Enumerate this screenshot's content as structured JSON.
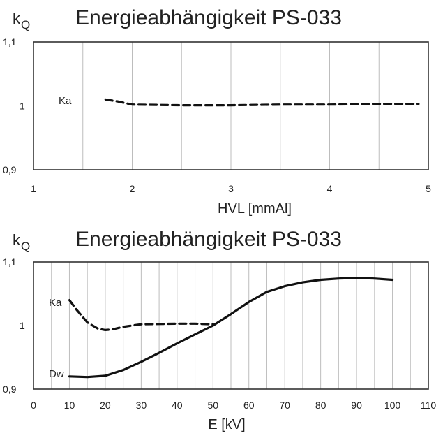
{
  "chart_data": [
    {
      "type": "line",
      "title": "Energieabhängigkeit PS-033",
      "ylabel_main": "k",
      "ylabel_sub": "Q",
      "xlabel": "HVL  [mmAl]",
      "xlim": [
        1,
        5
      ],
      "ylim": [
        0.9,
        1.1
      ],
      "x_ticks": [
        "1",
        "2",
        "3",
        "4",
        "5"
      ],
      "y_ticks": [
        "1,1",
        "1",
        "0,9"
      ],
      "grid": "vertical",
      "series": [
        {
          "name": "Ka",
          "style": "dashed",
          "x": [
            1.73,
            1.85,
            2.0,
            2.5,
            3.0,
            3.5,
            4.0,
            4.5,
            4.9
          ],
          "y": [
            1.01,
            1.007,
            1.002,
            1.001,
            1.001,
            1.002,
            1.002,
            1.003,
            1.003
          ]
        }
      ]
    },
    {
      "type": "line",
      "title": "Energieabhängigkeit PS-033",
      "ylabel_main": "k",
      "ylabel_sub": "Q",
      "xlabel": "E [kV]",
      "xlim": [
        0,
        110
      ],
      "ylim": [
        0.9,
        1.1
      ],
      "x_ticks": [
        "0",
        "10",
        "20",
        "30",
        "40",
        "50",
        "60",
        "70",
        "80",
        "90",
        "100",
        "110"
      ],
      "y_ticks": [
        "1,1",
        "1",
        "0,9"
      ],
      "grid": "vertical",
      "series": [
        {
          "name": "Ka",
          "style": "dashed",
          "x": [
            10,
            12,
            15,
            18,
            20,
            22,
            25,
            30,
            40,
            45,
            50
          ],
          "y": [
            1.04,
            1.025,
            1.005,
            0.995,
            0.993,
            0.994,
            0.998,
            1.002,
            1.003,
            1.003,
            1.002
          ]
        },
        {
          "name": "Dw",
          "style": "solid",
          "x": [
            10,
            15,
            20,
            25,
            30,
            35,
            40,
            45,
            50,
            55,
            60,
            65,
            70,
            75,
            80,
            85,
            90,
            95,
            100
          ],
          "y": [
            0.92,
            0.919,
            0.921,
            0.93,
            0.943,
            0.957,
            0.972,
            0.986,
            1.0,
            1.018,
            1.037,
            1.053,
            1.062,
            1.068,
            1.072,
            1.074,
            1.075,
            1.074,
            1.072
          ]
        }
      ]
    }
  ]
}
